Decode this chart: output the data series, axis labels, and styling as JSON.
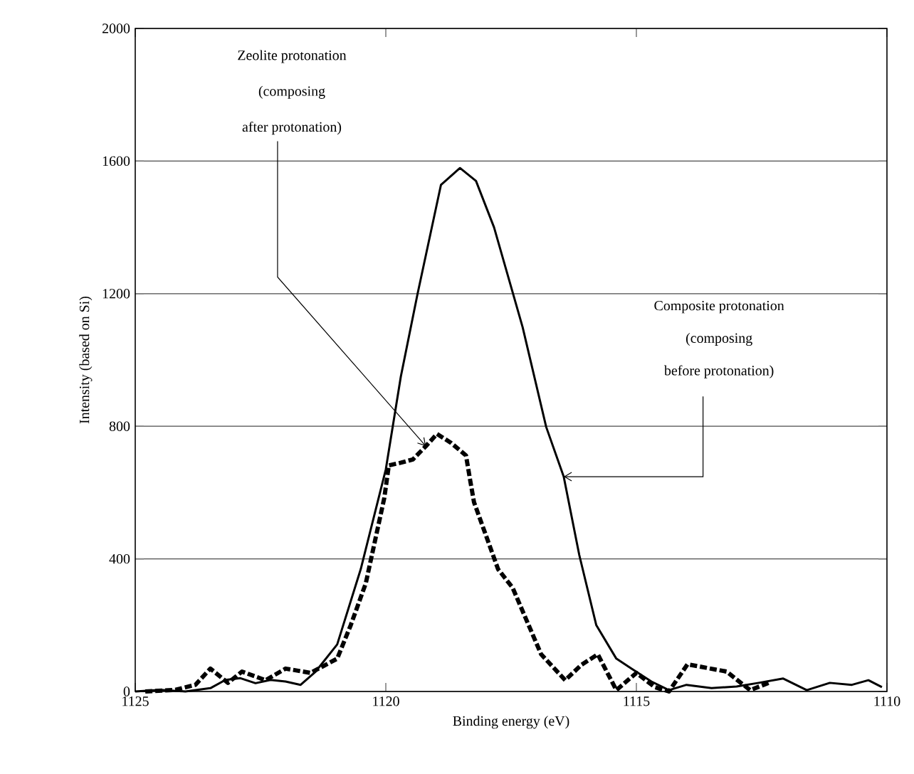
{
  "chart_data": {
    "type": "line",
    "xlabel": "Binding energy (eV)",
    "ylabel": "Intensity (based on Si)",
    "xlim": [
      1125,
      1110
    ],
    "xticks": [
      1125,
      1120,
      1115,
      1110
    ],
    "ylim": [
      0,
      2000
    ],
    "yticks": [
      0,
      400,
      800,
      1200,
      1600,
      2000
    ],
    "grid": "y",
    "series": [
      {
        "color": "#000000",
        "line_style": "solid",
        "x": [
          1125,
          1124.5,
          1124,
          1123.5,
          1123.2,
          1122.9,
          1122.6,
          1122.3,
          1122,
          1121.7,
          1121.4,
          1120.97,
          1120.5,
          1120,
          1119.7,
          1119.37,
          1118.9,
          1118.52,
          1118.2,
          1117.84,
          1117.27,
          1116.8,
          1116.45,
          1116.14,
          1115.8,
          1115.4,
          1115.1,
          1114.7,
          1114.35,
          1114,
          1113.5,
          1113,
          1112.56,
          1112.07,
          1111.6,
          1111.14,
          1110.7,
          1110.37,
          1110.1
        ],
        "values": [
          0,
          5,
          0,
          10,
          35,
          40,
          25,
          35,
          30,
          20,
          60,
          142,
          369,
          670,
          950,
          1197,
          1528,
          1579,
          1540,
          1400,
          1099,
          798,
          648,
          412,
          200,
          99,
          69,
          30,
          4,
          20,
          10,
          15,
          26,
          39,
          4,
          26,
          20,
          34,
          13
        ]
      },
      {
        "color": "#000000",
        "line_style": "dashed",
        "x": [
          1124.8,
          1124.2,
          1123.8,
          1123.5,
          1123.15,
          1122.87,
          1122.4,
          1122,
          1121.5,
          1120.97,
          1120.7,
          1120.4,
          1120.03,
          1119.94,
          1119.7,
          1119.46,
          1119.2,
          1118.98,
          1118.7,
          1118.4,
          1118.32,
          1118.24,
          1117.76,
          1117.47,
          1116.9,
          1116.42,
          1116.1,
          1115.77,
          1115.4,
          1115,
          1114.63,
          1114.35,
          1113.98,
          1113.2,
          1112.73,
          1112.36
        ],
        "values": [
          0,
          5,
          20,
          69,
          26,
          60,
          34,
          69,
          56,
          99,
          200,
          326,
          584,
          682,
          690,
          700,
          740,
          777,
          750,
          712,
          640,
          571,
          369,
          313,
          112,
          34,
          80,
          112,
          4,
          56,
          13,
          0,
          82,
          60,
          4,
          26
        ]
      }
    ],
    "annotations": [
      "Zeolite protonation",
      "(composing",
      {
        "text": "after protonation)",
        "x": 1119.2,
        "y": 740
      },
      "Composite protonation",
      "(composing",
      {
        "text": "before protonation)",
        "x": 1116.45,
        "y": 648
      }
    ]
  }
}
